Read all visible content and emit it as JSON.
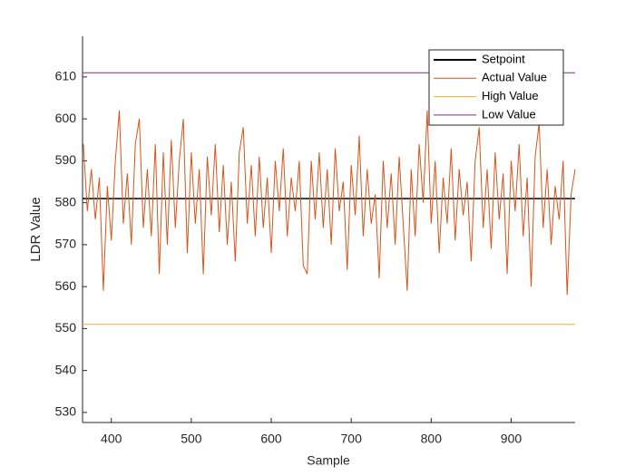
{
  "chart_data": {
    "type": "line",
    "xlabel": "Sample",
    "ylabel": "LDR Value",
    "xlim": [
      364,
      980
    ],
    "ylim": [
      527.6,
      619.7
    ],
    "xticks": [
      400,
      500,
      600,
      700,
      800,
      900
    ],
    "yticks": [
      530,
      540,
      550,
      560,
      570,
      580,
      590,
      600,
      610
    ],
    "legend": "top-right",
    "series": [
      {
        "name": "Setpoint",
        "color": "#000000",
        "x": [
          364,
          980
        ],
        "values": [
          581,
          581
        ]
      },
      {
        "name": "Actual Value",
        "color": "#d95319",
        "x": [
          365,
          370,
          375,
          380,
          385,
          390,
          395,
          400,
          405,
          410,
          415,
          420,
          425,
          430,
          435,
          440,
          445,
          450,
          455,
          460,
          465,
          470,
          475,
          480,
          485,
          490,
          495,
          500,
          505,
          510,
          515,
          520,
          525,
          530,
          535,
          540,
          545,
          550,
          555,
          560,
          565,
          570,
          575,
          580,
          585,
          590,
          595,
          600,
          605,
          610,
          615,
          620,
          625,
          630,
          635,
          640,
          645,
          650,
          655,
          660,
          665,
          670,
          675,
          680,
          685,
          690,
          695,
          700,
          705,
          710,
          715,
          720,
          725,
          730,
          735,
          740,
          745,
          750,
          755,
          760,
          765,
          770,
          775,
          780,
          785,
          790,
          795,
          800,
          805,
          810,
          815,
          820,
          825,
          830,
          835,
          840,
          845,
          850,
          855,
          860,
          865,
          870,
          875,
          880,
          885,
          890,
          895,
          900,
          905,
          910,
          915,
          920,
          925,
          930,
          935,
          940,
          945,
          950,
          955,
          960,
          965,
          970,
          975,
          980
        ],
        "values": [
          594,
          578,
          588,
          576,
          586,
          559,
          584,
          571,
          590,
          602,
          575,
          587,
          570,
          594,
          600,
          574,
          588,
          572,
          594,
          563,
          592,
          570,
          595,
          574,
          590,
          600,
          568,
          592,
          575,
          588,
          563,
          591,
          577,
          594,
          573,
          589,
          570,
          585,
          566,
          592,
          598,
          575,
          589,
          572,
          591,
          574,
          586,
          568,
          590,
          578,
          593,
          572,
          586,
          578,
          590,
          565,
          563,
          590,
          576,
          592,
          574,
          588,
          570,
          593,
          578,
          585,
          564,
          589,
          577,
          596,
          572,
          588,
          575,
          582,
          562,
          590,
          574,
          587,
          570,
          591,
          575,
          559,
          588,
          572,
          594,
          580,
          602,
          575,
          590,
          568,
          586,
          575,
          593,
          571,
          588,
          577,
          585,
          566,
          590,
          598,
          574,
          588,
          569,
          592,
          576,
          587,
          563,
          590,
          578,
          594,
          572,
          586,
          560,
          591,
          599,
          574,
          588,
          570,
          584,
          576,
          590,
          558,
          582,
          588
        ]
      },
      {
        "name": "High Value",
        "color": "#edb120",
        "x": [
          364,
          980
        ],
        "values": [
          551,
          551
        ]
      },
      {
        "name": "Low Value",
        "color": "#7e2f8e",
        "x": [
          364,
          980
        ],
        "values": [
          611,
          611
        ]
      }
    ]
  }
}
